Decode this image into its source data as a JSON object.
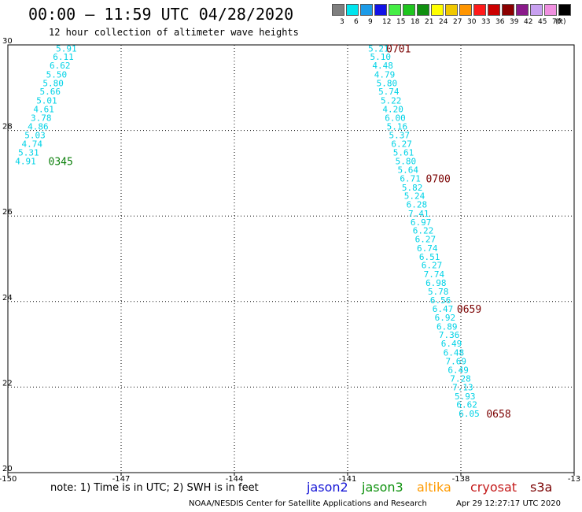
{
  "title": "00:00 – 11:59 UTC 04/28/2020",
  "subtitle": "12 hour collection of altimeter wave heights",
  "color_scale": {
    "unit": "(ft)",
    "bins": [
      {
        "label": "3",
        "color": "#7f7f7f"
      },
      {
        "label": "6",
        "color": "#00e5ee"
      },
      {
        "label": "9",
        "color": "#1c9be8"
      },
      {
        "label": "12",
        "color": "#1212e6"
      },
      {
        "label": "15",
        "color": "#45ee45"
      },
      {
        "label": "18",
        "color": "#1fc61f"
      },
      {
        "label": "21",
        "color": "#109010"
      },
      {
        "label": "24",
        "color": "#ffff00"
      },
      {
        "label": "27",
        "color": "#f0c800"
      },
      {
        "label": "30",
        "color": "#ff9500"
      },
      {
        "label": "33",
        "color": "#ff1a1a"
      },
      {
        "label": "36",
        "color": "#cc0000"
      },
      {
        "label": "39",
        "color": "#8b0000"
      },
      {
        "label": "42",
        "color": "#8a1a8a"
      },
      {
        "label": "45",
        "color": "#c8a0f0"
      },
      {
        "label": "70",
        "color": "#f090e0"
      },
      {
        "label": "",
        "color": "#000000"
      }
    ]
  },
  "map": {
    "lon_range": [
      -150,
      -135
    ],
    "lat_range": [
      20,
      30
    ],
    "lon_ticks": [
      "-150",
      "-147",
      "-144",
      "-141",
      "-138",
      "-13"
    ],
    "lat_ticks": [
      "30",
      "28",
      "26",
      "24",
      "22",
      "20"
    ],
    "grid": "dotted"
  },
  "track_color": "#00d2e6",
  "tracks": [
    {
      "name": "track-west",
      "points": [
        {
          "lon": -148.45,
          "lat": 29.92,
          "v": "5.91"
        },
        {
          "lon": -148.53,
          "lat": 29.72,
          "v": "6.11"
        },
        {
          "lon": -148.62,
          "lat": 29.52,
          "v": "6.62"
        },
        {
          "lon": -148.71,
          "lat": 29.31,
          "v": "5.50"
        },
        {
          "lon": -148.8,
          "lat": 29.11,
          "v": "5.80"
        },
        {
          "lon": -148.88,
          "lat": 28.91,
          "v": "5.66"
        },
        {
          "lon": -148.97,
          "lat": 28.7,
          "v": "5.01"
        },
        {
          "lon": -149.05,
          "lat": 28.5,
          "v": "4.61"
        },
        {
          "lon": -149.12,
          "lat": 28.3,
          "v": "3.78"
        },
        {
          "lon": -149.2,
          "lat": 28.09,
          "v": "4.86"
        },
        {
          "lon": -149.28,
          "lat": 27.89,
          "v": "5.03"
        },
        {
          "lon": -149.36,
          "lat": 27.69,
          "v": "4.74"
        },
        {
          "lon": -149.45,
          "lat": 27.49,
          "v": "5.31"
        },
        {
          "lon": -149.53,
          "lat": 27.28,
          "v": "4.91"
        }
      ],
      "time_label": {
        "text": "0345",
        "color": "#0a7f0a",
        "lon": -148.6,
        "lat": 27.28
      }
    },
    {
      "name": "track-east",
      "points": [
        {
          "lon": -140.18,
          "lat": 29.92,
          "v": "5.21"
        },
        {
          "lon": -140.13,
          "lat": 29.72,
          "v": "5.10"
        },
        {
          "lon": -140.07,
          "lat": 29.52,
          "v": "4.48"
        },
        {
          "lon": -140.02,
          "lat": 29.31,
          "v": "4.79"
        },
        {
          "lon": -139.96,
          "lat": 29.11,
          "v": "5.80"
        },
        {
          "lon": -139.91,
          "lat": 28.91,
          "v": "5.74"
        },
        {
          "lon": -139.85,
          "lat": 28.7,
          "v": "5.22"
        },
        {
          "lon": -139.8,
          "lat": 28.5,
          "v": "4.20"
        },
        {
          "lon": -139.74,
          "lat": 28.3,
          "v": "6.00"
        },
        {
          "lon": -139.69,
          "lat": 28.09,
          "v": "5.16"
        },
        {
          "lon": -139.63,
          "lat": 27.89,
          "v": "5.37"
        },
        {
          "lon": -139.57,
          "lat": 27.69,
          "v": "6.27"
        },
        {
          "lon": -139.52,
          "lat": 27.49,
          "v": "5.61"
        },
        {
          "lon": -139.46,
          "lat": 27.28,
          "v": "5.80"
        },
        {
          "lon": -139.4,
          "lat": 27.08,
          "v": "5.64"
        },
        {
          "lon": -139.34,
          "lat": 26.88,
          "v": "6.71"
        },
        {
          "lon": -139.29,
          "lat": 26.67,
          "v": "5.82"
        },
        {
          "lon": -139.23,
          "lat": 26.47,
          "v": "5.24"
        },
        {
          "lon": -139.17,
          "lat": 26.27,
          "v": "6.28"
        },
        {
          "lon": -139.12,
          "lat": 26.06,
          "v": "7.41"
        },
        {
          "lon": -139.06,
          "lat": 25.86,
          "v": "6.97"
        },
        {
          "lon": -139.0,
          "lat": 25.66,
          "v": "6.22"
        },
        {
          "lon": -138.94,
          "lat": 25.46,
          "v": "6.27"
        },
        {
          "lon": -138.89,
          "lat": 25.25,
          "v": "6.74"
        },
        {
          "lon": -138.83,
          "lat": 25.05,
          "v": "6.51"
        },
        {
          "lon": -138.77,
          "lat": 24.85,
          "v": "6.27"
        },
        {
          "lon": -138.71,
          "lat": 24.64,
          "v": "7.74"
        },
        {
          "lon": -138.66,
          "lat": 24.44,
          "v": "6.98"
        },
        {
          "lon": -138.6,
          "lat": 24.24,
          "v": "5.78"
        },
        {
          "lon": -138.54,
          "lat": 24.03,
          "v": "6.56"
        },
        {
          "lon": -138.48,
          "lat": 23.83,
          "v": "6.47"
        },
        {
          "lon": -138.42,
          "lat": 23.63,
          "v": "6.92"
        },
        {
          "lon": -138.37,
          "lat": 23.42,
          "v": "6.89"
        },
        {
          "lon": -138.31,
          "lat": 23.22,
          "v": "7.36"
        },
        {
          "lon": -138.25,
          "lat": 23.02,
          "v": "6.49"
        },
        {
          "lon": -138.19,
          "lat": 22.81,
          "v": "6.48"
        },
        {
          "lon": -138.13,
          "lat": 22.61,
          "v": "7.69"
        },
        {
          "lon": -138.07,
          "lat": 22.4,
          "v": "6.49"
        },
        {
          "lon": -138.01,
          "lat": 22.2,
          "v": "7.28"
        },
        {
          "lon": -137.95,
          "lat": 22.0,
          "v": "7.13"
        },
        {
          "lon": -137.89,
          "lat": 21.79,
          "v": "5.93"
        },
        {
          "lon": -137.84,
          "lat": 21.59,
          "v": "6.62"
        },
        {
          "lon": -137.78,
          "lat": 21.38,
          "v": "6.05"
        }
      ],
      "time_labels": [
        {
          "text": "0701",
          "color": "#7a0000",
          "lon": -139.65,
          "lat": 29.92
        },
        {
          "text": "0700",
          "color": "#7a0000",
          "lon": -138.6,
          "lat": 26.88
        },
        {
          "text": "0659",
          "color": "#7a0000",
          "lon": -137.78,
          "lat": 23.83
        },
        {
          "text": "0658",
          "color": "#7a0000",
          "lon": -137.0,
          "lat": 21.38
        }
      ]
    }
  ],
  "footer": {
    "note": "note: 1) Time is in UTC; 2) SWH is in feet",
    "legend": [
      {
        "label": "jason2",
        "color": "#1515d6"
      },
      {
        "label": "jason3",
        "color": "#10920f"
      },
      {
        "label": "altika",
        "color": "#ff9a00"
      },
      {
        "label": "cryosat",
        "color": "#c41a1a"
      },
      {
        "label": "s3a",
        "color": "#7a0000"
      }
    ],
    "credit": "NOAA/NESDIS Center for Satellite Applications and Research",
    "timestamp": "Apr 29 12:27:17 UTC 2020"
  }
}
